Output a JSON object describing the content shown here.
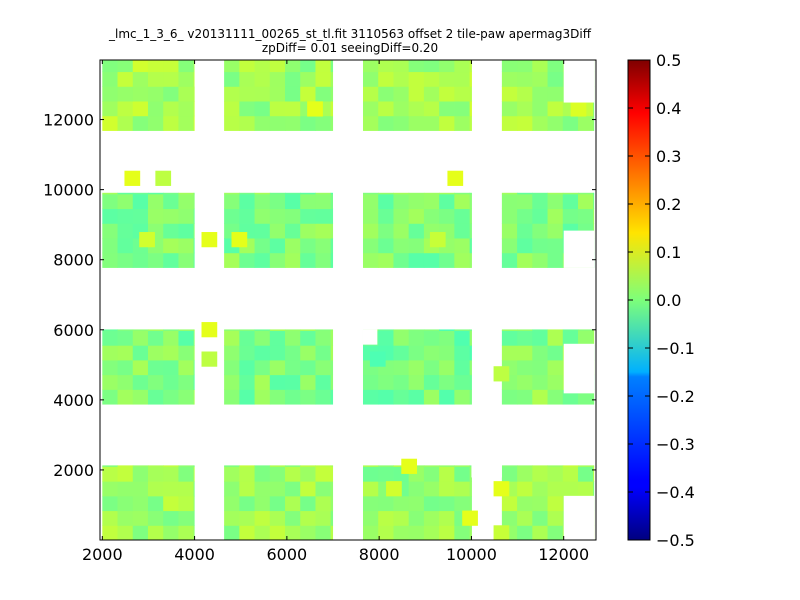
{
  "chart_data": {
    "type": "heatmap",
    "title": "_lmc_1_3_6_ v20131111_00265_st_tl.fit 3110563 offset 2 tile-paw apermag3Diff",
    "subtitle": "zpDiff= 0.01 seeingDiff=0.20",
    "xlabel": "",
    "ylabel": "",
    "xlim": [
      1950,
      12700
    ],
    "ylim": [
      0,
      13700
    ],
    "x_ticks": [
      2000,
      4000,
      6000,
      8000,
      10000,
      12000
    ],
    "y_ticks": [
      2000,
      4000,
      6000,
      8000,
      10000,
      12000
    ],
    "cell_size": [
      330,
      420
    ],
    "colorbar": {
      "colormap": "jet",
      "range": [
        -0.5,
        0.5
      ],
      "ticks": [
        "0.5",
        "0.4",
        "0.3",
        "0.2",
        "0.1",
        "0.0",
        "−0.1",
        "−0.2",
        "−0.3",
        "−0.4",
        "−0.5"
      ]
    },
    "tiles": [
      {
        "x": [
          2000,
          3990
        ],
        "y": [
          0,
          2130
        ],
        "value": 0.03
      },
      {
        "x": [
          4640,
          6990
        ],
        "y": [
          0,
          2130
        ],
        "value": 0.03
      },
      {
        "x": [
          7650,
          10000
        ],
        "y": [
          0,
          2130
        ],
        "value": 0.02
      },
      {
        "x": [
          10660,
          12650
        ],
        "y": [
          0,
          2130
        ],
        "value": 0.03
      },
      {
        "x": [
          2000,
          3990
        ],
        "y": [
          3880,
          6010
        ],
        "value": 0.0
      },
      {
        "x": [
          4640,
          6990
        ],
        "y": [
          3880,
          6010
        ],
        "value": 0.0
      },
      {
        "x": [
          7650,
          10000
        ],
        "y": [
          3880,
          6010
        ],
        "value": -0.01
      },
      {
        "x": [
          10660,
          12650
        ],
        "y": [
          3880,
          6010
        ],
        "value": 0.01
      },
      {
        "x": [
          2000,
          3990
        ],
        "y": [
          7780,
          9910
        ],
        "value": 0.0
      },
      {
        "x": [
          4640,
          6990
        ],
        "y": [
          7780,
          9910
        ],
        "value": 0.0
      },
      {
        "x": [
          7650,
          10000
        ],
        "y": [
          7780,
          9910
        ],
        "value": 0.0
      },
      {
        "x": [
          10660,
          12650
        ],
        "y": [
          7780,
          9910
        ],
        "value": 0.0
      },
      {
        "x": [
          2000,
          3990
        ],
        "y": [
          11690,
          13700
        ],
        "value": 0.04
      },
      {
        "x": [
          4640,
          6990
        ],
        "y": [
          11690,
          13700
        ],
        "value": 0.03
      },
      {
        "x": [
          7650,
          10000
        ],
        "y": [
          11690,
          13700
        ],
        "value": 0.04
      },
      {
        "x": [
          10660,
          12650
        ],
        "y": [
          11690,
          13700
        ],
        "value": 0.03
      }
    ],
    "outlier_cells": [
      {
        "x": 2480,
        "y": 10120,
        "value": 0.1
      },
      {
        "x": 3150,
        "y": 10120,
        "value": 0.06
      },
      {
        "x": 9480,
        "y": 10120,
        "value": 0.1
      },
      {
        "x": 4150,
        "y": 8370,
        "value": 0.1
      },
      {
        "x": 4800,
        "y": 8370,
        "value": 0.1
      },
      {
        "x": 2800,
        "y": 8370,
        "value": 0.08
      },
      {
        "x": 4150,
        "y": 5800,
        "value": 0.1
      },
      {
        "x": 4150,
        "y": 4960,
        "value": 0.06
      },
      {
        "x": 7800,
        "y": 4960,
        "value": -0.05
      },
      {
        "x": 10480,
        "y": 4540,
        "value": 0.06
      },
      {
        "x": 8480,
        "y": 1900,
        "value": 0.1
      },
      {
        "x": 10480,
        "y": 1260,
        "value": 0.1
      },
      {
        "x": 9800,
        "y": 420,
        "value": 0.1
      },
      {
        "x": 10480,
        "y": 0,
        "value": 0.07
      },
      {
        "x": 12150,
        "y": 12100,
        "value": 0.09
      },
      {
        "x": 6440,
        "y": 12100,
        "value": 0.1
      },
      {
        "x": 9100,
        "y": 8370,
        "value": 0.07
      },
      {
        "x": 8150,
        "y": 1260,
        "value": 0.08
      }
    ],
    "missing_cells": [
      {
        "x": [
          4000,
          4320
        ],
        "y": [
          12950,
          13700
        ]
      },
      {
        "x": [
          7000,
          7320
        ],
        "y": [
          9480,
          9910
        ]
      },
      {
        "x": [
          12000,
          12650
        ],
        "y": [
          7780,
          8830
        ]
      },
      {
        "x": [
          12000,
          12650
        ],
        "y": [
          4200,
          5600
        ]
      },
      {
        "x": [
          12000,
          12650
        ],
        "y": [
          0,
          1260
        ]
      },
      {
        "x": [
          10000,
          10650
        ],
        "y": [
          1800,
          2200
        ]
      },
      {
        "x": [
          12000,
          12650
        ],
        "y": [
          12500,
          13700
        ]
      },
      {
        "x": [
          7650,
          7950
        ],
        "y": [
          5590,
          6010
        ]
      }
    ]
  }
}
